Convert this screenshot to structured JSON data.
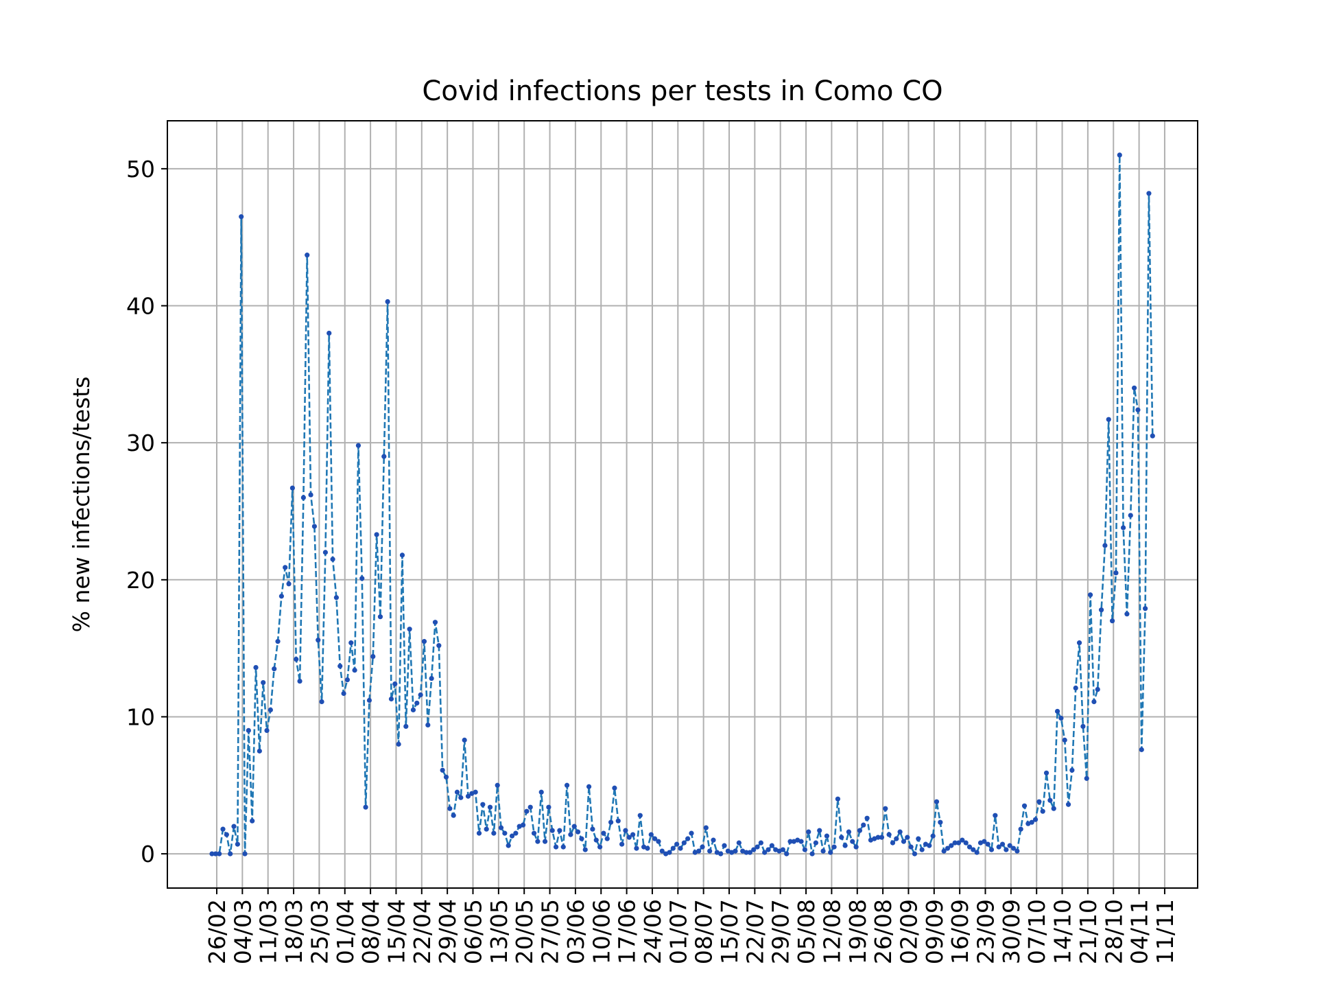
{
  "chart_data": {
    "type": "line",
    "title": "Covid infections per tests in Como CO",
    "xlabel": "",
    "ylabel": "% new infections/tests",
    "ylim": [
      -2.5,
      53.5
    ],
    "yticks": [
      0,
      10,
      20,
      30,
      40,
      50
    ],
    "grid": true,
    "line_style": "dashed",
    "marker": "dot",
    "colors": {
      "line": "#1f77b4",
      "marker": "#1f4fb4",
      "grid": "#b0b0b0"
    },
    "x_tick_labels": [
      "26/02",
      "04/03",
      "11/03",
      "18/03",
      "25/03",
      "01/04",
      "08/04",
      "15/04",
      "22/04",
      "29/04",
      "06/05",
      "13/05",
      "20/05",
      "27/05",
      "03/06",
      "10/06",
      "17/06",
      "24/06",
      "01/07",
      "08/07",
      "15/07",
      "22/07",
      "29/07",
      "05/08",
      "12/08",
      "19/08",
      "26/08",
      "02/09",
      "09/09",
      "16/09",
      "23/09",
      "30/09",
      "07/10",
      "14/10",
      "21/10",
      "28/10",
      "04/11",
      "11/11"
    ],
    "x_start": "26/02",
    "series": [
      {
        "name": "",
        "values": [
          0,
          0,
          0,
          1.8,
          1.4,
          0,
          2,
          0.7,
          46.5,
          0,
          9,
          2.4,
          13.6,
          7.5,
          12.5,
          9,
          10.5,
          13.5,
          15.5,
          18.8,
          20.9,
          19.7,
          26.7,
          14.2,
          12.6,
          26,
          43.7,
          26.2,
          23.9,
          15.6,
          11.1,
          22,
          38,
          21.5,
          18.7,
          13.7,
          11.7,
          12.7,
          15.4,
          13.4,
          29.8,
          20.1,
          3.4,
          11.2,
          14.4,
          23.3,
          17.3,
          29,
          40.3,
          11.3,
          12.4,
          8,
          21.8,
          9.3,
          16.4,
          10.5,
          11,
          11.6,
          15.5,
          9.4,
          12.8,
          16.9,
          15.2,
          6.1,
          5.6,
          3.3,
          2.8,
          4.5,
          4.1,
          8.3,
          4.2,
          4.4,
          4.5,
          1.5,
          3.6,
          1.8,
          3.4,
          1.5,
          5,
          1.9,
          1.5,
          0.6,
          1.3,
          1.5,
          2,
          2.1,
          3.1,
          3.4,
          1.5,
          0.9,
          4.5,
          0.9,
          3.4,
          1.7,
          0.5,
          1.7,
          0.5,
          5,
          1.4,
          2,
          1.6,
          1.1,
          0.3,
          4.9,
          1.8,
          1,
          0.5,
          1.5,
          1.1,
          2.3,
          4.8,
          2.4,
          0.7,
          1.7,
          1.2,
          1.4,
          0.4,
          2.8,
          0.5,
          0.4,
          1.4,
          1.1,
          0.9,
          0.2,
          0,
          0.1,
          0.4,
          0.7,
          0.4,
          0.8,
          1.1,
          1.5,
          0.1,
          0.2,
          0.5,
          1.9,
          0.2,
          1,
          0.1,
          0,
          0.6,
          0.2,
          0.1,
          0.2,
          0.8,
          0.2,
          0.1,
          0.1,
          0.3,
          0.5,
          0.8,
          0.1,
          0.3,
          0.6,
          0.3,
          0.2,
          0.3,
          0,
          0.9,
          0.9,
          1,
          0.9,
          0.3,
          1.6,
          0,
          0.8,
          1.7,
          0.2,
          1.3,
          0.1,
          0.5,
          4,
          1.2,
          0.6,
          1.6,
          0.9,
          0.5,
          1.7,
          2.1,
          2.6,
          1,
          1.1,
          1.2,
          1.2,
          3.3,
          1.4,
          0.8,
          1.1,
          1.6,
          0.9,
          1.2,
          0.5,
          0,
          1.1,
          0.3,
          0.7,
          0.6,
          1.3,
          3.8,
          2.3,
          0.2,
          0.4,
          0.6,
          0.8,
          0.8,
          1,
          0.8,
          0.5,
          0.3,
          0.1,
          0.8,
          0.9,
          0.7,
          0.3,
          2.8,
          0.5,
          0.7,
          0.3,
          0.6,
          0.4,
          0.2,
          1.8,
          3.5,
          2.2,
          2.3,
          2.5,
          3.8,
          3.1,
          5.9,
          3.9,
          3.3,
          10.4,
          9.9,
          8.3,
          3.6,
          6.1,
          12.1,
          15.4,
          9.3,
          5.5,
          18.9,
          11.1,
          12,
          17.8,
          22.5,
          31.7,
          17,
          20.5,
          51,
          23.8,
          17.5,
          24.7,
          34,
          32.4,
          7.6,
          17.9,
          48.2,
          30.5
        ]
      }
    ]
  }
}
